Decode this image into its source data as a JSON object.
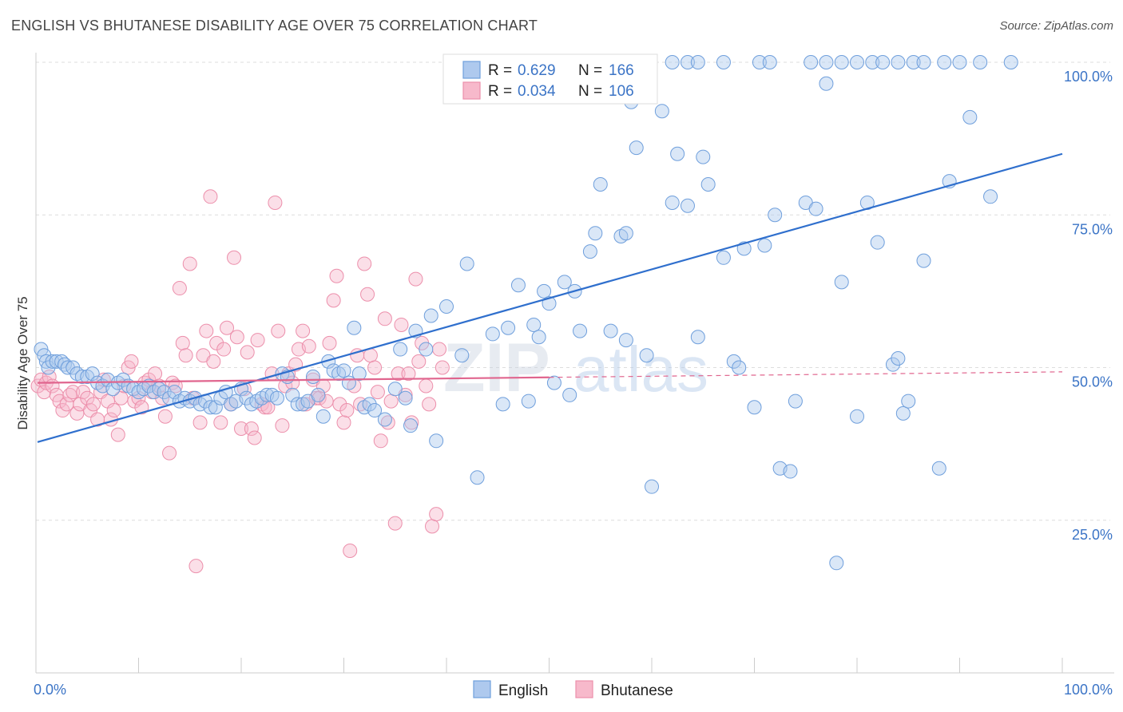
{
  "header": {
    "title": "ENGLISH VS BHUTANESE DISABILITY AGE OVER 75 CORRELATION CHART",
    "source": "Source: ZipAtlas.com"
  },
  "watermark": {
    "part1": "ZIP",
    "part2": "atlas"
  },
  "chart_data": {
    "type": "scatter",
    "title": "ENGLISH VS BHUTANESE DISABILITY AGE OVER 75 CORRELATION CHART",
    "xlabel": "",
    "ylabel": "Disability Age Over 75",
    "xlim": [
      0,
      100
    ],
    "ylim": [
      0,
      105
    ],
    "x_tick_labels": [
      "0.0%",
      "100.0%"
    ],
    "y_ticks": [
      25,
      50,
      75,
      100
    ],
    "y_tick_labels": [
      "25.0%",
      "50.0%",
      "75.0%",
      "100.0%"
    ],
    "legend": {
      "items": [
        {
          "r_label": "R =",
          "r": "0.629",
          "n_label": "N =",
          "n": "166"
        },
        {
          "r_label": "R =",
          "r": "0.034",
          "n_label": "N =",
          "n": "106"
        }
      ]
    },
    "bottom_legend": [
      "English",
      "Bhutanese"
    ],
    "colors": {
      "english_fill": "#aec9ee",
      "english_stroke": "#6f9fdc",
      "english_line": "#2f6fcd",
      "bhutanese_fill": "#f7b9cb",
      "bhutanese_stroke": "#ec8fab",
      "bhutanese_line": "#e0658e",
      "grid": "#dddddd",
      "label": "#3b74c6"
    },
    "series": [
      {
        "name": "English",
        "trend": {
          "x": [
            0,
            100
          ],
          "y": [
            37.8,
            85.0
          ]
        },
        "points": [
          [
            0.5,
            53
          ],
          [
            0.8,
            52
          ],
          [
            1.0,
            51
          ],
          [
            1.2,
            50
          ],
          [
            1.6,
            51
          ],
          [
            2.0,
            51
          ],
          [
            2.5,
            51
          ],
          [
            2.8,
            50.5
          ],
          [
            3.1,
            50
          ],
          [
            3.6,
            50
          ],
          [
            4.0,
            49
          ],
          [
            4.5,
            48.5
          ],
          [
            5.0,
            48.5
          ],
          [
            5.5,
            49
          ],
          [
            6.0,
            47.5
          ],
          [
            6.5,
            47
          ],
          [
            7.0,
            48
          ],
          [
            7.5,
            46.5
          ],
          [
            8.0,
            47.5
          ],
          [
            8.5,
            48
          ],
          [
            9.0,
            47
          ],
          [
            9.5,
            46.5
          ],
          [
            10.0,
            46
          ],
          [
            10.5,
            46.5
          ],
          [
            11.0,
            47
          ],
          [
            11.5,
            46
          ],
          [
            12.0,
            46.5
          ],
          [
            12.5,
            46
          ],
          [
            13.0,
            45
          ],
          [
            13.5,
            46
          ],
          [
            14.0,
            44.5
          ],
          [
            14.5,
            45
          ],
          [
            15.0,
            44.5
          ],
          [
            15.5,
            45
          ],
          [
            16.0,
            44
          ],
          [
            16.5,
            44.5
          ],
          [
            17.0,
            43.5
          ],
          [
            17.5,
            43.5
          ],
          [
            18.0,
            45
          ],
          [
            18.5,
            46
          ],
          [
            19.0,
            44
          ],
          [
            19.5,
            44.5
          ],
          [
            20.0,
            46.5
          ],
          [
            20.5,
            45
          ],
          [
            21.0,
            44
          ],
          [
            21.5,
            44.5
          ],
          [
            22.0,
            45
          ],
          [
            22.5,
            45.5
          ],
          [
            23.0,
            45.5
          ],
          [
            23.5,
            45
          ],
          [
            24.0,
            49
          ],
          [
            24.5,
            48.5
          ],
          [
            25.0,
            45.5
          ],
          [
            25.5,
            44
          ],
          [
            26.0,
            44
          ],
          [
            26.5,
            44.5
          ],
          [
            27.0,
            48.5
          ],
          [
            27.5,
            45.5
          ],
          [
            28.0,
            42
          ],
          [
            28.5,
            51
          ],
          [
            29.0,
            49.5
          ],
          [
            29.5,
            49
          ],
          [
            30.0,
            49.5
          ],
          [
            30.5,
            47.5
          ],
          [
            31.0,
            56.5
          ],
          [
            31.5,
            49
          ],
          [
            32.0,
            43.5
          ],
          [
            32.5,
            44
          ],
          [
            33.0,
            43
          ],
          [
            34.0,
            41.5
          ],
          [
            35.0,
            46.5
          ],
          [
            35.5,
            53
          ],
          [
            36.0,
            45
          ],
          [
            36.5,
            40.5
          ],
          [
            37.0,
            56
          ],
          [
            38.0,
            53
          ],
          [
            38.5,
            58.5
          ],
          [
            39.0,
            38
          ],
          [
            40.0,
            60
          ],
          [
            41.5,
            52
          ],
          [
            42.0,
            67
          ],
          [
            43.0,
            32
          ],
          [
            44.5,
            55.5
          ],
          [
            45.5,
            44
          ],
          [
            46.0,
            56.5
          ],
          [
            47.0,
            63.5
          ],
          [
            48.0,
            44.5
          ],
          [
            48.5,
            57
          ],
          [
            49.0,
            55
          ],
          [
            49.5,
            62.5
          ],
          [
            50.0,
            60.5
          ],
          [
            50.5,
            47.5
          ],
          [
            51.5,
            64
          ],
          [
            52.0,
            45.5
          ],
          [
            52.5,
            62.5
          ],
          [
            53.0,
            56
          ],
          [
            54.0,
            69
          ],
          [
            54.5,
            72
          ],
          [
            55.0,
            80
          ],
          [
            56.0,
            56
          ],
          [
            57.0,
            71.5
          ],
          [
            57.5,
            72
          ],
          [
            57.5,
            54.5
          ],
          [
            58.0,
            93.5
          ],
          [
            58.5,
            86
          ],
          [
            59.5,
            52
          ],
          [
            60.0,
            30.5
          ],
          [
            61.0,
            92
          ],
          [
            62.0,
            77
          ],
          [
            62.5,
            85
          ],
          [
            63.5,
            76.5
          ],
          [
            64.5,
            55
          ],
          [
            65.0,
            84.5
          ],
          [
            65.5,
            80
          ],
          [
            67.0,
            68
          ],
          [
            68.0,
            51
          ],
          [
            68.5,
            50
          ],
          [
            69.0,
            69.5
          ],
          [
            70.0,
            43.5
          ],
          [
            71.0,
            70
          ],
          [
            72.0,
            75
          ],
          [
            72.5,
            33.5
          ],
          [
            73.5,
            33
          ],
          [
            74.0,
            44.5
          ],
          [
            75.0,
            77
          ],
          [
            76.0,
            76
          ],
          [
            77.0,
            96.5
          ],
          [
            78.0,
            18
          ],
          [
            78.5,
            64
          ],
          [
            80.0,
            42
          ],
          [
            81.0,
            77
          ],
          [
            82.0,
            70.5
          ],
          [
            83.5,
            50.5
          ],
          [
            84.0,
            51.5
          ],
          [
            84.5,
            42.5
          ],
          [
            85.0,
            44.5
          ],
          [
            86.5,
            67.5
          ],
          [
            88.0,
            33.5
          ],
          [
            89.0,
            80.5
          ],
          [
            91.0,
            91
          ],
          [
            93.0,
            78
          ],
          [
            62.0,
            100
          ],
          [
            63.5,
            100
          ],
          [
            64.5,
            100
          ],
          [
            67.0,
            100
          ],
          [
            70.5,
            100
          ],
          [
            71.5,
            100
          ],
          [
            75.5,
            100
          ],
          [
            77.0,
            100
          ],
          [
            78.5,
            100
          ],
          [
            80.0,
            100
          ],
          [
            81.5,
            100
          ],
          [
            82.5,
            100
          ],
          [
            84.0,
            100
          ],
          [
            85.5,
            100
          ],
          [
            86.5,
            100
          ],
          [
            88.5,
            100
          ],
          [
            90.0,
            100
          ],
          [
            92.0,
            100
          ],
          [
            95.0,
            100
          ]
        ]
      },
      {
        "name": "Bhutanese",
        "trend": {
          "x_solid": [
            0,
            50
          ],
          "x_dashed": [
            50,
            100
          ],
          "y_at_0": 47.5,
          "y_at_100": 49.3
        },
        "points": [
          [
            0.2,
            47
          ],
          [
            0.5,
            48
          ],
          [
            0.8,
            46
          ],
          [
            1.0,
            47.5
          ],
          [
            1.3,
            48.5
          ],
          [
            1.6,
            47
          ],
          [
            2.0,
            45.5
          ],
          [
            2.3,
            44.5
          ],
          [
            2.6,
            43
          ],
          [
            3.0,
            44
          ],
          [
            3.3,
            45.5
          ],
          [
            3.6,
            46
          ],
          [
            4.0,
            42.5
          ],
          [
            4.3,
            44
          ],
          [
            4.6,
            46
          ],
          [
            5.0,
            45
          ],
          [
            5.3,
            43
          ],
          [
            5.6,
            44
          ],
          [
            6.0,
            41.5
          ],
          [
            6.3,
            46
          ],
          [
            6.6,
            48
          ],
          [
            7.0,
            44.5
          ],
          [
            7.3,
            41.5
          ],
          [
            7.6,
            43
          ],
          [
            8.0,
            39
          ],
          [
            8.3,
            45
          ],
          [
            8.6,
            47
          ],
          [
            9.0,
            50
          ],
          [
            9.3,
            51
          ],
          [
            9.6,
            44.5
          ],
          [
            10.0,
            45
          ],
          [
            10.3,
            43.5
          ],
          [
            10.6,
            47.5
          ],
          [
            11.0,
            48
          ],
          [
            11.3,
            46
          ],
          [
            11.6,
            49
          ],
          [
            12.0,
            47
          ],
          [
            12.3,
            45
          ],
          [
            12.6,
            42
          ],
          [
            13.0,
            36
          ],
          [
            13.3,
            47.5
          ],
          [
            13.6,
            47
          ],
          [
            14.0,
            63
          ],
          [
            14.3,
            54
          ],
          [
            14.6,
            52
          ],
          [
            15.0,
            67
          ],
          [
            15.3,
            45
          ],
          [
            15.6,
            17.5
          ],
          [
            16.0,
            41
          ],
          [
            16.3,
            52
          ],
          [
            16.6,
            56
          ],
          [
            17.0,
            78
          ],
          [
            17.3,
            51
          ],
          [
            17.6,
            54
          ],
          [
            18.0,
            41
          ],
          [
            18.3,
            53
          ],
          [
            18.6,
            56.5
          ],
          [
            19.0,
            44
          ],
          [
            19.3,
            68
          ],
          [
            19.6,
            55
          ],
          [
            20.0,
            40
          ],
          [
            20.3,
            46.5
          ],
          [
            20.6,
            52.5
          ],
          [
            21.0,
            40
          ],
          [
            21.3,
            38.5
          ],
          [
            21.6,
            54.5
          ],
          [
            22.0,
            44
          ],
          [
            22.3,
            43.5
          ],
          [
            22.6,
            43.5
          ],
          [
            23.0,
            49
          ],
          [
            23.3,
            77
          ],
          [
            23.6,
            56
          ],
          [
            24.0,
            40.5
          ],
          [
            24.3,
            47
          ],
          [
            24.6,
            49
          ],
          [
            25.0,
            47.5
          ],
          [
            25.3,
            50.5
          ],
          [
            25.6,
            53
          ],
          [
            26.0,
            56
          ],
          [
            26.3,
            44
          ],
          [
            26.6,
            53.5
          ],
          [
            27.0,
            48
          ],
          [
            27.3,
            45
          ],
          [
            27.6,
            45
          ],
          [
            28.0,
            47
          ],
          [
            28.3,
            44.5
          ],
          [
            28.6,
            54
          ],
          [
            29.0,
            61
          ],
          [
            29.3,
            65
          ],
          [
            29.6,
            44
          ],
          [
            30.0,
            41
          ],
          [
            30.3,
            43
          ],
          [
            30.6,
            20
          ],
          [
            31.0,
            47
          ],
          [
            31.3,
            52
          ],
          [
            31.6,
            44
          ],
          [
            32.0,
            67
          ],
          [
            32.3,
            62
          ],
          [
            32.6,
            52
          ],
          [
            33.0,
            50
          ],
          [
            33.3,
            46
          ],
          [
            33.6,
            38
          ],
          [
            34.0,
            58
          ],
          [
            34.3,
            41
          ],
          [
            34.6,
            44.5
          ],
          [
            35.0,
            24.5
          ],
          [
            35.3,
            49
          ],
          [
            35.6,
            57
          ],
          [
            36.0,
            45.5
          ],
          [
            36.3,
            49
          ],
          [
            36.6,
            41
          ],
          [
            37.0,
            64.5
          ],
          [
            37.3,
            51
          ],
          [
            37.6,
            54
          ],
          [
            38.0,
            47
          ],
          [
            38.3,
            44
          ],
          [
            38.6,
            24
          ],
          [
            39.0,
            26
          ],
          [
            39.3,
            53
          ],
          [
            39.6,
            50
          ]
        ]
      }
    ]
  }
}
